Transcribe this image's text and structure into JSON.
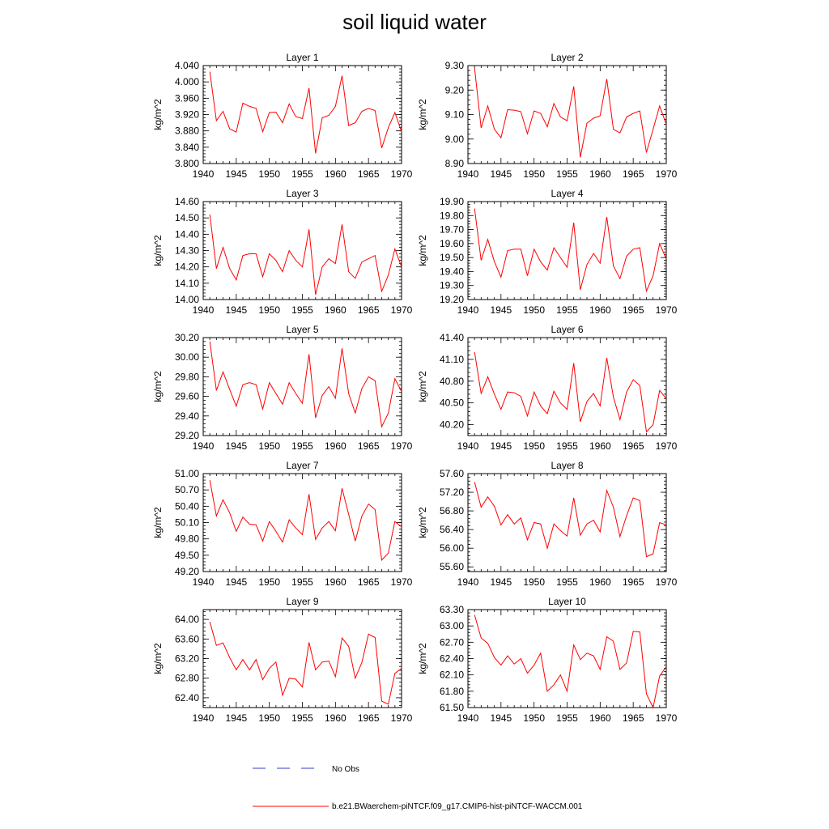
{
  "title": "soil liquid water",
  "panels": [
    {
      "title": "Layer 1",
      "ylabel": "kg/m^2",
      "ymin": 3.8,
      "ymax": 4.04,
      "yticks": [
        3.8,
        3.84,
        3.88,
        3.92,
        3.96,
        4.0,
        4.04
      ],
      "yticklabels": [
        "3.800",
        "3.840",
        "3.880",
        "3.920",
        "3.960",
        "4.000",
        "4.040"
      ],
      "values": [
        4.025,
        3.905,
        3.928,
        3.885,
        3.877,
        3.948,
        3.94,
        3.935,
        3.878,
        3.925,
        3.926,
        3.9,
        3.946,
        3.915,
        3.91,
        3.985,
        3.825,
        3.912,
        3.918,
        3.94,
        4.015,
        3.893,
        3.9,
        3.928,
        3.935,
        3.93,
        3.838,
        3.888,
        3.925,
        3.878
      ]
    },
    {
      "title": "Layer 2",
      "ylabel": "kg/m^2",
      "ymin": 8.9,
      "ymax": 9.3,
      "yticks": [
        8.9,
        9.0,
        9.1,
        9.2,
        9.3
      ],
      "yticklabels": [
        "8.90",
        "9.00",
        "9.10",
        "9.20",
        "9.30"
      ],
      "values": [
        9.29,
        9.045,
        9.135,
        9.04,
        9.005,
        9.12,
        9.118,
        9.112,
        9.022,
        9.115,
        9.105,
        9.05,
        9.145,
        9.09,
        9.075,
        9.215,
        8.925,
        9.065,
        9.085,
        9.095,
        9.245,
        9.04,
        9.025,
        9.09,
        9.105,
        9.115,
        8.945,
        9.04,
        9.135,
        9.06
      ]
    },
    {
      "title": "Layer 3",
      "ylabel": "kg/m^2",
      "ymin": 14.0,
      "ymax": 14.6,
      "yticks": [
        14.0,
        14.1,
        14.2,
        14.3,
        14.4,
        14.5,
        14.6
      ],
      "yticklabels": [
        "14.00",
        "14.10",
        "14.20",
        "14.30",
        "14.40",
        "14.50",
        "14.60"
      ],
      "values": [
        14.52,
        14.19,
        14.32,
        14.19,
        14.12,
        14.27,
        14.28,
        14.28,
        14.14,
        14.28,
        14.24,
        14.17,
        14.3,
        14.24,
        14.2,
        14.43,
        14.03,
        14.2,
        14.25,
        14.22,
        14.46,
        14.17,
        14.13,
        14.23,
        14.25,
        14.27,
        14.05,
        14.15,
        14.31,
        14.2
      ]
    },
    {
      "title": "Layer 4",
      "ylabel": "kg/m^2",
      "ymin": 19.2,
      "ymax": 19.9,
      "yticks": [
        19.2,
        19.3,
        19.4,
        19.5,
        19.6,
        19.7,
        19.8,
        19.9
      ],
      "yticklabels": [
        "19.20",
        "19.30",
        "19.40",
        "19.50",
        "19.60",
        "19.70",
        "19.80",
        "19.90"
      ],
      "values": [
        19.85,
        19.48,
        19.63,
        19.47,
        19.36,
        19.55,
        19.56,
        19.56,
        19.37,
        19.56,
        19.47,
        19.41,
        19.57,
        19.5,
        19.43,
        19.75,
        19.27,
        19.45,
        19.53,
        19.46,
        19.79,
        19.44,
        19.35,
        19.51,
        19.56,
        19.57,
        19.26,
        19.37,
        19.6,
        19.49
      ]
    },
    {
      "title": "Layer 5",
      "ylabel": "kg/m^2",
      "ymin": 29.2,
      "ymax": 30.2,
      "yticks": [
        29.2,
        29.4,
        29.6,
        29.8,
        30.0,
        30.2
      ],
      "yticklabels": [
        "29.20",
        "29.40",
        "29.60",
        "29.80",
        "30.00",
        "30.20"
      ],
      "values": [
        30.16,
        29.66,
        29.85,
        29.67,
        29.5,
        29.72,
        29.74,
        29.72,
        29.47,
        29.74,
        29.63,
        29.52,
        29.74,
        29.63,
        29.53,
        30.03,
        29.38,
        29.61,
        29.7,
        29.58,
        30.09,
        29.63,
        29.43,
        29.68,
        29.8,
        29.76,
        29.29,
        29.43,
        29.78,
        29.65
      ]
    },
    {
      "title": "Layer 6",
      "ylabel": "kg/m^2",
      "ymin": 40.05,
      "ymax": 41.4,
      "yticks": [
        40.2,
        40.5,
        40.8,
        41.1,
        41.4
      ],
      "yticklabels": [
        "40.20",
        "40.50",
        "40.80",
        "41.10",
        "41.40"
      ],
      "values": [
        41.2,
        40.63,
        40.86,
        40.62,
        40.41,
        40.65,
        40.64,
        40.59,
        40.32,
        40.65,
        40.46,
        40.35,
        40.66,
        40.5,
        40.41,
        41.05,
        40.24,
        40.52,
        40.63,
        40.46,
        41.12,
        40.58,
        40.27,
        40.65,
        40.82,
        40.74,
        40.1,
        40.2,
        40.67,
        40.56
      ]
    },
    {
      "title": "Layer 7",
      "ylabel": "kg/m^2",
      "ymin": 49.2,
      "ymax": 51.0,
      "yticks": [
        49.2,
        49.5,
        49.8,
        50.1,
        50.4,
        50.7,
        51.0
      ],
      "yticklabels": [
        "49.20",
        "49.50",
        "49.80",
        "50.10",
        "50.40",
        "50.70",
        "51.00"
      ],
      "values": [
        50.88,
        50.22,
        50.52,
        50.28,
        49.94,
        50.2,
        50.07,
        50.06,
        49.76,
        50.12,
        49.94,
        49.74,
        50.15,
        50.0,
        49.88,
        50.62,
        49.79,
        50.0,
        50.12,
        49.95,
        50.73,
        50.25,
        49.76,
        50.22,
        50.44,
        50.34,
        49.41,
        49.54,
        50.12,
        50.02
      ]
    },
    {
      "title": "Layer 8",
      "ylabel": "kg/m^2",
      "ymin": 55.5,
      "ymax": 57.6,
      "yticks": [
        55.6,
        56.0,
        56.4,
        56.8,
        57.2,
        57.6
      ],
      "yticklabels": [
        "55.60",
        "56.00",
        "56.40",
        "56.80",
        "57.20",
        "57.60"
      ],
      "values": [
        57.42,
        56.88,
        57.1,
        56.9,
        56.5,
        56.72,
        56.52,
        56.65,
        56.18,
        56.55,
        56.52,
        56.0,
        56.52,
        56.38,
        56.26,
        57.08,
        56.28,
        56.52,
        56.6,
        56.35,
        57.24,
        56.88,
        56.25,
        56.7,
        57.08,
        57.02,
        55.82,
        55.88,
        56.55,
        56.5
      ]
    },
    {
      "title": "Layer 9",
      "ylabel": "kg/m^2",
      "ymin": 62.2,
      "ymax": 64.2,
      "yticks": [
        62.4,
        62.8,
        63.2,
        63.6,
        64.0
      ],
      "yticklabels": [
        "62.40",
        "62.80",
        "63.20",
        "63.60",
        "64.00"
      ],
      "values": [
        63.95,
        63.47,
        63.52,
        63.22,
        62.97,
        63.18,
        62.97,
        63.18,
        62.77,
        63.0,
        63.13,
        62.45,
        62.8,
        62.78,
        62.62,
        63.53,
        62.97,
        63.13,
        63.15,
        62.83,
        63.62,
        63.45,
        62.8,
        63.12,
        63.7,
        63.63,
        62.33,
        62.27,
        62.9,
        63.0
      ]
    },
    {
      "title": "Layer 10",
      "ylabel": "kg/m^2",
      "ymin": 61.5,
      "ymax": 63.3,
      "yticks": [
        61.5,
        61.8,
        62.1,
        62.4,
        62.7,
        63.0,
        63.3
      ],
      "yticklabels": [
        "61.50",
        "61.80",
        "62.10",
        "62.40",
        "62.70",
        "63.00",
        "63.30"
      ],
      "values": [
        63.2,
        62.78,
        62.68,
        62.42,
        62.28,
        62.45,
        62.3,
        62.4,
        62.13,
        62.28,
        62.5,
        61.8,
        61.92,
        62.1,
        61.8,
        62.65,
        62.38,
        62.5,
        62.45,
        62.2,
        62.8,
        62.72,
        62.2,
        62.32,
        62.9,
        62.89,
        61.75,
        61.5,
        62.08,
        62.25
      ]
    }
  ],
  "chart_data": {
    "type": "line",
    "title": "soil liquid water",
    "x": [
      1941,
      1942,
      1943,
      1944,
      1945,
      1946,
      1947,
      1948,
      1949,
      1950,
      1951,
      1952,
      1953,
      1954,
      1955,
      1956,
      1957,
      1958,
      1959,
      1960,
      1961,
      1962,
      1963,
      1964,
      1965,
      1966,
      1967,
      1968,
      1969,
      1970
    ],
    "xlim": [
      1940,
      1970
    ],
    "xticks": [
      "1940",
      "1945",
      "1950",
      "1955",
      "1960",
      "1965",
      "1970"
    ],
    "ylabel": "kg/m^2",
    "series_color": "#ff0000",
    "panel_count": 10
  },
  "legend": {
    "items": [
      {
        "label": "No Obs",
        "color": "#3a3ad0",
        "style": "dashed"
      },
      {
        "label": "b.e21.BWaerchem-piNTCF.f09_g17.CMIP6-hist-piNTCF-WACCM.001",
        "color": "#ff0000",
        "style": "solid"
      }
    ]
  }
}
